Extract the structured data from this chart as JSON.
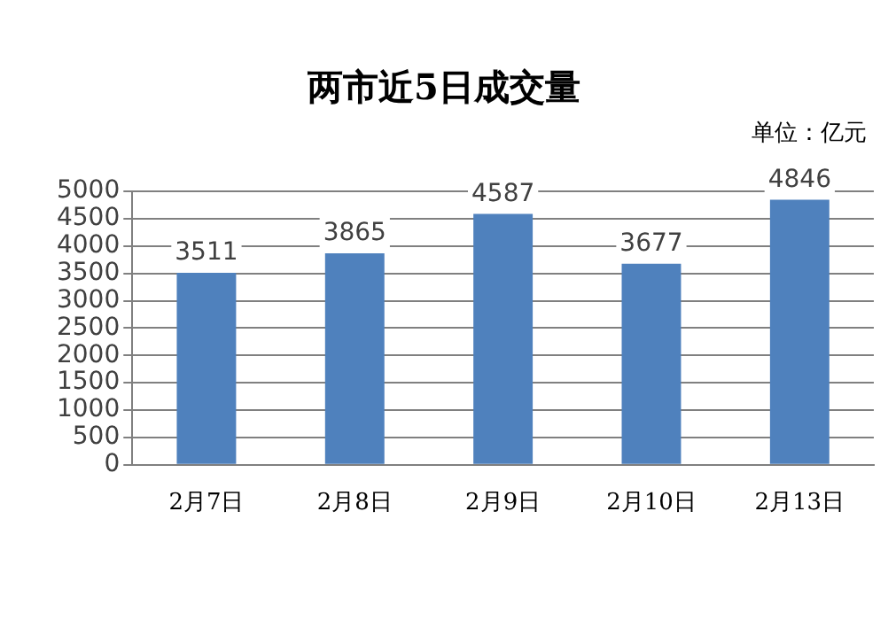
{
  "chart_data": {
    "type": "bar",
    "title": "两市近5日成交量",
    "annotations": [
      "单位：亿元"
    ],
    "categories": [
      "2月7日",
      "2月8日",
      "2月9日",
      "2月10日",
      "2月13日"
    ],
    "values": [
      3511,
      3865,
      4587,
      3677,
      4846
    ],
    "color": "#4f81bd",
    "ylim": [
      0,
      5000
    ],
    "yticks": [
      0,
      500,
      1000,
      1500,
      2000,
      2500,
      3000,
      3500,
      4000,
      4500,
      5000
    ],
    "grid": "y",
    "data_labels": true,
    "legend": false
  }
}
